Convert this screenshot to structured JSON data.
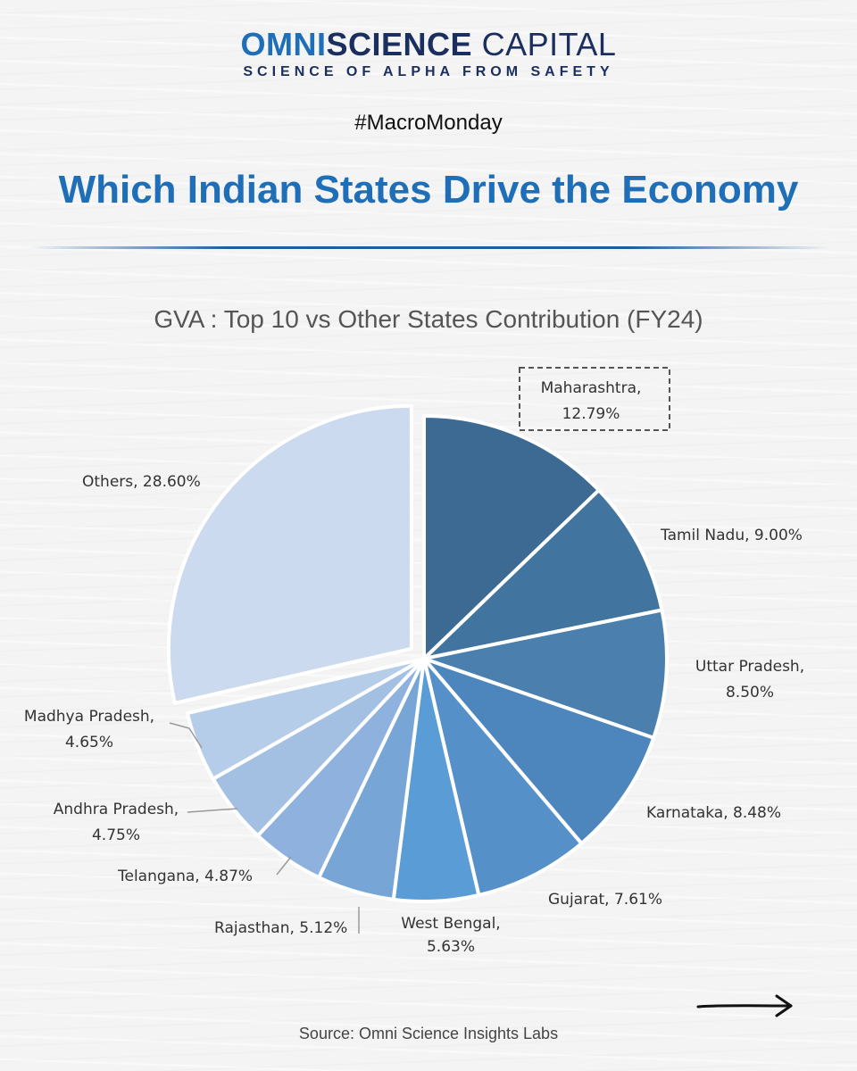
{
  "brand": {
    "name_part1": "OMNI",
    "name_part2": "SCIENCE",
    "name_part3": " CAPITAL",
    "tagline": "SCIENCE OF ALPHA FROM SAFETY"
  },
  "hashtag": "#MacroMonday",
  "headline": "Which Indian States Drive the Economy",
  "source": "Source: Omni Science Insights Labs",
  "icons": {
    "next": "right-arrow-icon"
  },
  "chart_data": {
    "type": "pie",
    "title": "GVA : Top 10 vs Other States Contribution (FY24)",
    "unit": "%",
    "slices": [
      {
        "label": "Maharashtra",
        "value": 12.79,
        "color": "#3d6a93"
      },
      {
        "label": "Tamil Nadu",
        "value": 9.0,
        "color": "#4274a0"
      },
      {
        "label": "Uttar Pradesh",
        "value": 8.5,
        "color": "#4a7fae"
      },
      {
        "label": "Karnataka",
        "value": 8.48,
        "color": "#4d86bd"
      },
      {
        "label": "Gujarat",
        "value": 7.61,
        "color": "#5590c8"
      },
      {
        "label": "West Bengal",
        "value": 5.63,
        "color": "#5a9cd6"
      },
      {
        "label": "Rajasthan",
        "value": 5.12,
        "color": "#77a6d6"
      },
      {
        "label": "Telangana",
        "value": 4.87,
        "color": "#8eb2dd"
      },
      {
        "label": "Andhra Pradesh",
        "value": 4.75,
        "color": "#a3c0e3"
      },
      {
        "label": "Madhya Pradesh",
        "value": 4.65,
        "color": "#b6cdea"
      },
      {
        "label": "Others",
        "value": 28.6,
        "color": "#cbdaee",
        "exploded": true
      }
    ],
    "labels": [
      {
        "lines": [
          "Maharashtra,",
          "12.79%"
        ],
        "callout_box": true
      },
      {
        "lines": [
          "Tamil Nadu, 9.00%"
        ]
      },
      {
        "lines": [
          "Uttar Pradesh,",
          "8.50%"
        ]
      },
      {
        "lines": [
          "Karnataka, 8.48%"
        ]
      },
      {
        "lines": [
          "Gujarat, 7.61%"
        ]
      },
      {
        "lines": [
          "West Bengal,",
          "5.63%"
        ]
      },
      {
        "lines": [
          "Rajasthan, 5.12%"
        ],
        "leader": true
      },
      {
        "lines": [
          "Telangana, 4.87%"
        ],
        "leader": true
      },
      {
        "lines": [
          "Andhra Pradesh,",
          "4.75%"
        ],
        "leader": true
      },
      {
        "lines": [
          "Madhya Pradesh,",
          "4.65%"
        ],
        "leader": true
      },
      {
        "lines": [
          "Others, 28.60%"
        ]
      }
    ]
  }
}
